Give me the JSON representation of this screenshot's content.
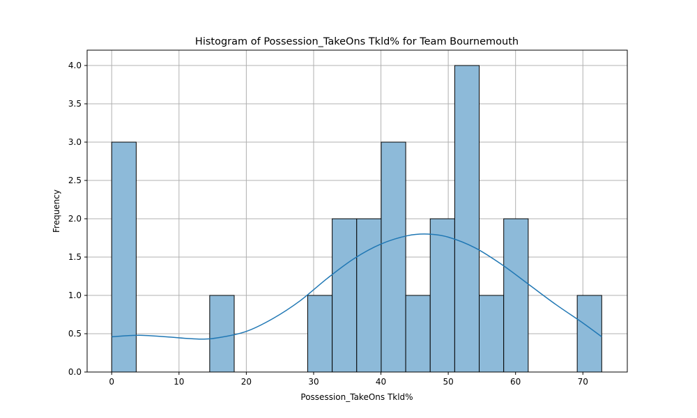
{
  "chart_data": {
    "type": "bar",
    "title": "Histogram of Possession_TakeOns Tkld% for Team Bournemouth",
    "xlabel": "Possession_TakeOns Tkld%",
    "ylabel": "Frequency",
    "xlim": [
      -3.65,
      76.6
    ],
    "ylim": [
      0,
      4.2
    ],
    "grid": true,
    "bin_edges": [
      0.0,
      3.64,
      7.28,
      10.92,
      14.56,
      18.2,
      21.84,
      25.48,
      29.12,
      32.76,
      36.4,
      40.04,
      43.68,
      47.32,
      50.96,
      54.6,
      58.24,
      61.88,
      65.52,
      69.16,
      72.8
    ],
    "values": [
      3,
      0,
      0,
      0,
      1,
      0,
      0,
      0,
      1,
      2,
      2,
      3,
      1,
      2,
      4,
      1,
      2,
      0,
      0,
      1
    ],
    "kde": {
      "x": [
        0,
        4,
        8,
        13,
        16,
        20,
        24,
        28,
        32,
        36,
        40,
        44,
        47,
        50,
        54,
        58,
        62,
        66,
        70,
        72.8
      ],
      "y": [
        0.46,
        0.48,
        0.46,
        0.43,
        0.45,
        0.53,
        0.7,
        0.93,
        1.22,
        1.48,
        1.67,
        1.78,
        1.8,
        1.76,
        1.62,
        1.4,
        1.14,
        0.88,
        0.64,
        0.46
      ]
    },
    "x_ticks": [
      0,
      10,
      20,
      30,
      40,
      50,
      60,
      70
    ],
    "y_ticks": [
      0.0,
      0.5,
      1.0,
      1.5,
      2.0,
      2.5,
      3.0,
      3.5,
      4.0
    ],
    "colors": {
      "bar_fill": "#8dbad9",
      "bar_edge": "#000000",
      "kde_line": "#1f77b4",
      "grid": "#b0b0b0"
    }
  }
}
